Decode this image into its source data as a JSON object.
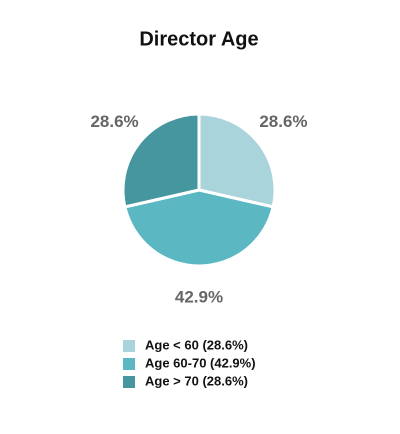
{
  "chart_data": {
    "type": "pie",
    "title": "Director Age",
    "categories": [
      "Age < 60 (28.6%)",
      "Age 60-70 (42.9%)",
      "Age > 70 (28.6%)"
    ],
    "values": [
      28.6,
      42.9,
      28.6
    ],
    "value_labels": [
      "28.6%",
      "42.9%",
      "28.6%"
    ],
    "colors": [
      "#aad4dc",
      "#5bb8c3",
      "#46969f"
    ],
    "legend": "bottom"
  }
}
